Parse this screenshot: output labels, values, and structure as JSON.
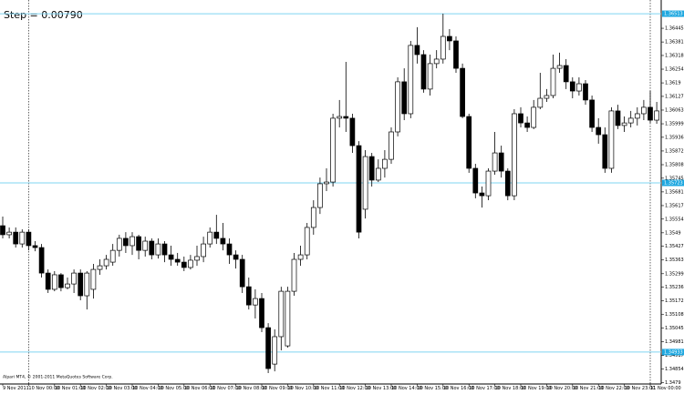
{
  "chart_data": {
    "type": "candlestick",
    "title": "Step = 0.00790",
    "footer": "Alpari MT4, © 2001-2011 MetaQuotes Software Corp.",
    "categories": [
      "9 Nov 2011",
      null,
      null,
      null,
      "10 Nov 00:00",
      null,
      null,
      null,
      "10 Nov 01:00",
      null,
      null,
      null,
      "10 Nov 02:00",
      null,
      null,
      null,
      "10 Nov 03:00",
      null,
      null,
      null,
      "10 Nov 04:00",
      null,
      null,
      null,
      "10 Nov 05:00",
      null,
      null,
      null,
      "10 Nov 06:00",
      null,
      null,
      null,
      "10 Nov 07:00",
      null,
      null,
      null,
      "10 Nov 08:00",
      null,
      null,
      null,
      "10 Nov 09:00",
      null,
      null,
      null,
      "10 Nov 10:00",
      null,
      null,
      null,
      "10 Nov 11:00",
      null,
      null,
      null,
      "10 Nov 12:00",
      null,
      null,
      null,
      "10 Nov 13:00",
      null,
      null,
      null,
      "10 Nov 14:00",
      null,
      null,
      null,
      "10 Nov 15:00",
      null,
      null,
      null,
      "10 Nov 16:00",
      null,
      null,
      null,
      "10 Nov 17:00",
      null,
      null,
      null,
      "10 Nov 18:00",
      null,
      null,
      null,
      "10 Nov 19:00",
      null,
      null,
      null,
      "10 Nov 20:00",
      null,
      null,
      null,
      "10 Nov 21:00",
      null,
      null,
      null,
      "10 Nov 22:00",
      null,
      null,
      null,
      "10 Nov 23:00",
      null,
      null,
      null,
      "11 Nov 00:00",
      null
    ],
    "open": [
      1.35523,
      1.35481,
      1.35493,
      1.35438,
      1.35493,
      1.3543,
      1.35421,
      1.35302,
      1.35226,
      1.35294,
      1.35234,
      1.35251,
      1.35302,
      1.35196,
      1.35226,
      1.35319,
      1.35336,
      1.35353,
      1.35408,
      1.35464,
      1.3543,
      1.35472,
      1.35408,
      1.35451,
      1.35387,
      1.35438,
      1.35387,
      1.35366,
      1.35353,
      1.35328,
      1.35362,
      1.35379,
      1.35438,
      1.35493,
      1.35464,
      1.35438,
      1.35387,
      1.35366,
      1.35238,
      1.35153,
      1.35183,
      1.35047,
      1.34877,
      1.35005,
      1.34962,
      1.35217,
      1.35366,
      1.35387,
      1.35515,
      1.35608,
      1.35719,
      1.35727,
      1.36025,
      1.36033,
      1.36025,
      1.35897,
      1.356,
      1.35846,
      1.35736,
      1.35791,
      1.35833,
      1.35961,
      1.36195,
      1.36046,
      1.36365,
      1.36322,
      1.36161,
      1.3628,
      1.36301,
      1.36407,
      1.36386,
      1.36258,
      1.36033,
      1.35791,
      1.35676,
      1.35663,
      1.35778,
      1.35863,
      1.35778,
      1.35663,
      1.36046,
      1.36003,
      1.35982,
      1.36076,
      1.36118,
      1.36131,
      1.36258,
      1.36271,
      1.36195,
      1.36152,
      1.36186,
      1.3611,
      1.35982,
      1.35948,
      1.35791,
      1.36059,
      1.35991,
      1.36003,
      1.36025,
      1.36046,
      1.36076,
      1.36016
    ],
    "high": [
      1.35566,
      1.35515,
      1.35515,
      1.35506,
      1.35506,
      1.35451,
      1.35438,
      1.35319,
      1.35311,
      1.35302,
      1.35281,
      1.35319,
      1.35319,
      1.35311,
      1.35345,
      1.35366,
      1.35387,
      1.35438,
      1.35481,
      1.35493,
      1.35493,
      1.35481,
      1.35472,
      1.35464,
      1.35464,
      1.35451,
      1.3543,
      1.35396,
      1.35379,
      1.35387,
      1.3543,
      1.35472,
      1.35515,
      1.35574,
      1.35536,
      1.35464,
      1.35408,
      1.35387,
      1.35281,
      1.35226,
      1.35209,
      1.35068,
      1.35039,
      1.35238,
      1.35238,
      1.35396,
      1.3543,
      1.35536,
      1.35642,
      1.35748,
      1.35791,
      1.36046,
      1.3611,
      1.36288,
      1.36046,
      1.35918,
      1.35876,
      1.35863,
      1.35833,
      1.35876,
      1.35982,
      1.36216,
      1.36258,
      1.36386,
      1.3645,
      1.36343,
      1.36322,
      1.36343,
      1.36513,
      1.36441,
      1.36407,
      1.3628,
      1.36046,
      1.35812,
      1.35706,
      1.35791,
      1.35961,
      1.35897,
      1.35791,
      1.36067,
      1.36076,
      1.36033,
      1.3611,
      1.36237,
      1.36161,
      1.36322,
      1.36331,
      1.36301,
      1.36216,
      1.36216,
      1.36203,
      1.36131,
      1.36025,
      1.35982,
      1.36076,
      1.36088,
      1.36033,
      1.36059,
      1.36076,
      1.3611,
      1.36152,
      1.36101
    ],
    "low": [
      1.35464,
      1.35464,
      1.35421,
      1.35421,
      1.35408,
      1.35404,
      1.35281,
      1.35209,
      1.35217,
      1.35217,
      1.35226,
      1.35209,
      1.35175,
      1.35132,
      1.35183,
      1.35294,
      1.35319,
      1.35336,
      1.35379,
      1.35396,
      1.35387,
      1.35366,
      1.35379,
      1.35366,
      1.3537,
      1.35353,
      1.35336,
      1.35336,
      1.35311,
      1.35319,
      1.35336,
      1.35353,
      1.35421,
      1.35438,
      1.35408,
      1.35345,
      1.35323,
      1.35209,
      1.35132,
      1.3509,
      1.35026,
      1.34835,
      1.34843,
      1.34941,
      1.34954,
      1.35196,
      1.35336,
      1.35366,
      1.35481,
      1.35578,
      1.35685,
      1.35706,
      1.35982,
      1.35961,
      1.35863,
      1.35464,
      1.35557,
      1.35706,
      1.35727,
      1.35748,
      1.35812,
      1.3594,
      1.36016,
      1.36025,
      1.3628,
      1.36144,
      1.36131,
      1.36258,
      1.3628,
      1.36343,
      1.36237,
      1.36025,
      1.3577,
      1.35651,
      1.35608,
      1.35642,
      1.35761,
      1.35748,
      1.35642,
      1.35642,
      1.35982,
      1.35961,
      1.35974,
      1.36067,
      1.36101,
      1.36118,
      1.36237,
      1.36161,
      1.36118,
      1.36131,
      1.36088,
      1.35961,
      1.35906,
      1.3577,
      1.3577,
      1.35974,
      1.35961,
      1.35982,
      1.35991,
      1.36016,
      1.36003,
      1.35999
    ],
    "close": [
      1.35481,
      1.35493,
      1.35438,
      1.35493,
      1.3543,
      1.35421,
      1.35302,
      1.35226,
      1.35294,
      1.35234,
      1.35251,
      1.35302,
      1.35196,
      1.35302,
      1.35319,
      1.35336,
      1.35366,
      1.35408,
      1.35464,
      1.3543,
      1.35472,
      1.35408,
      1.35451,
      1.35387,
      1.35438,
      1.35387,
      1.35366,
      1.35353,
      1.35328,
      1.35362,
      1.35379,
      1.35438,
      1.35493,
      1.35464,
      1.35438,
      1.35387,
      1.35366,
      1.35238,
      1.35153,
      1.35183,
      1.35047,
      1.34856,
      1.35005,
      1.35217,
      1.35217,
      1.35366,
      1.35387,
      1.35515,
      1.35608,
      1.35719,
      1.35727,
      1.36025,
      1.36033,
      1.36025,
      1.35897,
      1.35493,
      1.35846,
      1.35736,
      1.35791,
      1.35833,
      1.35961,
      1.36195,
      1.36046,
      1.36365,
      1.36322,
      1.36161,
      1.3628,
      1.36301,
      1.36407,
      1.36386,
      1.36258,
      1.36033,
      1.35791,
      1.35676,
      1.35663,
      1.35778,
      1.35863,
      1.35778,
      1.35663,
      1.36046,
      1.36003,
      1.35982,
      1.36076,
      1.36118,
      1.36131,
      1.36258,
      1.36271,
      1.36195,
      1.36152,
      1.36186,
      1.3611,
      1.35982,
      1.35948,
      1.35791,
      1.36059,
      1.35991,
      1.36003,
      1.36025,
      1.36046,
      1.36076,
      1.36016,
      1.36059
    ],
    "up_color": "#ffffff",
    "down_color": "#000000",
    "levels": [
      1.36513,
      1.35723,
      1.34933
    ],
    "level_color": "#7fd4f2",
    "ylim": [
      1.34784,
      1.36577
    ],
    "yticks": [
      1.36445,
      1.36381,
      1.36318,
      1.36254,
      1.3619,
      1.36127,
      1.36063,
      1.35999,
      1.35936,
      1.35872,
      1.35808,
      1.35745,
      1.35681,
      1.35617,
      1.35554,
      1.3549,
      1.35427,
      1.35363,
      1.35299,
      1.35236,
      1.35172,
      1.35108,
      1.35045,
      1.34981,
      1.34917,
      1.34854,
      1.3479
    ],
    "grid": false
  }
}
